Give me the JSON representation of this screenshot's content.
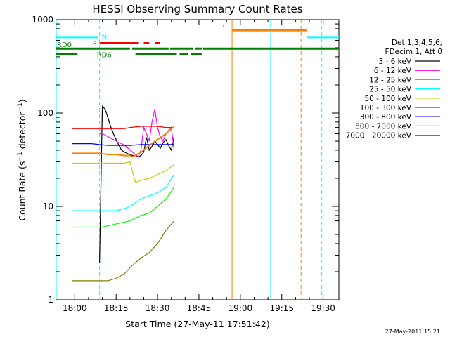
{
  "chart_data": {
    "type": "line",
    "title": "HESSI Observing Summary Count Rates",
    "xlabel": "Start Time (27-May-11 17:51:42)",
    "ylabel": "Count Rate (s^-1 detector^-1)",
    "ylabel_parts": {
      "main": "Count Rate (s",
      "sup1": "−1",
      "mid": " detector",
      "sup2": "−1",
      "end": ")"
    },
    "y_scale": "log",
    "xlim_minutes": [
      -6.7,
      95.7
    ],
    "ylim": [
      1,
      1000
    ],
    "x_ticks": [
      {
        "min": 0,
        "label": "18:00"
      },
      {
        "min": 15,
        "label": "18:15"
      },
      {
        "min": 30,
        "label": "18:30"
      },
      {
        "min": 45,
        "label": "18:45"
      },
      {
        "min": 60,
        "label": "19:00"
      },
      {
        "min": 75,
        "label": "19:15"
      },
      {
        "min": 90,
        "label": "19:30"
      }
    ],
    "y_ticks": [
      {
        "value": 1,
        "label": "1"
      },
      {
        "value": 10,
        "label": "10"
      },
      {
        "value": 100,
        "label": "100"
      },
      {
        "value": 1000,
        "label": "1000"
      }
    ],
    "legend_header": [
      "Det 1,3,4,5,6,",
      "FDecim 1, Att 0"
    ],
    "legend_placement": "right",
    "series": [
      {
        "name": "3 - 6 keV",
        "color": "#000000",
        "x": [
          9,
          10,
          11,
          12,
          13,
          14,
          15,
          16,
          17,
          18,
          19,
          20,
          21,
          22,
          23,
          24,
          25,
          26,
          27,
          28,
          29,
          30,
          31,
          32,
          33,
          34,
          35,
          36
        ],
        "y": [
          2.5,
          118,
          110,
          90,
          72,
          60,
          52,
          45,
          40,
          38,
          37,
          36,
          35,
          35,
          34,
          35,
          38,
          55,
          40,
          44,
          50,
          46,
          42,
          48,
          52,
          45,
          40,
          55
        ]
      },
      {
        "name": "6 - 12 keV",
        "color": "#ff00ff",
        "x": [
          9,
          10,
          11,
          12,
          13,
          14,
          15,
          16,
          17,
          18,
          19,
          20,
          21,
          22,
          23,
          24,
          25,
          26,
          27,
          28,
          29,
          30,
          31,
          32,
          33,
          34,
          35,
          36
        ],
        "y": [
          60,
          60,
          58,
          56,
          54,
          52,
          50,
          48,
          47,
          45,
          43,
          40,
          38,
          36,
          34,
          40,
          70,
          60,
          50,
          80,
          110,
          70,
          55,
          50,
          60,
          65,
          70,
          40
        ]
      },
      {
        "name": "12 - 25 keV",
        "color": "#00ff00",
        "x": [
          -1,
          0,
          3,
          6,
          9,
          10,
          15,
          20,
          22,
          24,
          27,
          30,
          33,
          36
        ],
        "y": [
          6,
          6,
          6,
          6,
          6,
          6,
          6.5,
          7,
          7.5,
          8,
          8.5,
          10,
          12,
          16
        ]
      },
      {
        "name": "25 - 50 keV",
        "color": "#00ffff",
        "x": [
          -1,
          3,
          6,
          9,
          12,
          15,
          18,
          20,
          22,
          24,
          27,
          30,
          33,
          36
        ],
        "y": [
          9,
          9,
          9,
          9,
          9,
          9,
          9.5,
          10,
          11,
          12,
          13,
          14,
          16,
          22
        ]
      },
      {
        "name": "50 - 100 keV",
        "color": "#cccc00",
        "x": [
          -1,
          3,
          6,
          9,
          12,
          15,
          18,
          20,
          22,
          24,
          27,
          30,
          33,
          36
        ],
        "y": [
          29,
          29,
          29,
          29,
          29,
          29,
          29,
          30,
          18,
          19,
          20,
          22,
          24,
          28
        ]
      },
      {
        "name": "100 - 300 keV",
        "color": "#ff0000",
        "x": [
          -1,
          3,
          6,
          9,
          12,
          15,
          18,
          20,
          24,
          27,
          30,
          33,
          36
        ],
        "y": [
          68,
          68,
          68,
          68,
          68,
          68,
          68,
          70,
          72,
          72,
          72,
          70,
          70
        ]
      },
      {
        "name": "300 - 800 keV",
        "color": "#0000ff",
        "x": [
          -1,
          3,
          6,
          9,
          12,
          15,
          18,
          20,
          24,
          27,
          30,
          33,
          36
        ],
        "y": [
          47,
          47,
          47,
          46,
          45,
          45,
          45,
          45,
          46,
          46,
          46,
          46,
          46
        ]
      },
      {
        "name": "800 - 7000 keV",
        "color": "#ff8000",
        "x": [
          -1,
          3,
          6,
          9,
          12,
          15,
          18,
          20,
          21,
          24,
          27,
          30,
          33,
          36
        ],
        "y": [
          37,
          37,
          37,
          37,
          36,
          36,
          35,
          35,
          34,
          38,
          45,
          52,
          60,
          72
        ]
      },
      {
        "name": "7000 - 20000 keV",
        "color": "#808000",
        "x": [
          -1,
          3,
          6,
          9,
          12,
          15,
          18,
          20,
          22,
          24,
          27,
          30,
          33,
          36
        ],
        "y": [
          1.6,
          1.6,
          1.6,
          1.6,
          1.6,
          1.7,
          1.9,
          2.2,
          2.5,
          2.8,
          3.2,
          4,
          5.5,
          7
        ]
      }
    ],
    "flag_bars": [
      {
        "label": "N",
        "color": "#00ffff",
        "y": 650,
        "segments": [
          [
            -6.7,
            8.5
          ],
          [
            84,
            95.7
          ]
        ]
      },
      {
        "label": "F",
        "color": "#ff0000",
        "y": 560,
        "segments": [
          [
            9,
            23
          ],
          [
            25,
            27
          ],
          [
            29,
            31
          ]
        ]
      },
      {
        "label": "S",
        "color": "#ff8000",
        "y": 770,
        "segments": [
          [
            57,
            84
          ]
        ]
      },
      {
        "label": "RD0",
        "color": "#008000",
        "y": 490,
        "segments": [
          [
            -6.7,
            20
          ],
          [
            20.8,
            34
          ],
          [
            34.5,
            43
          ],
          [
            43.5,
            46
          ],
          [
            46.5,
            95.7
          ]
        ]
      },
      {
        "label": "RD6",
        "color": "#008000",
        "y": 425,
        "segments": [
          [
            -6.7,
            1
          ],
          [
            22,
            37
          ],
          [
            38,
            41
          ],
          [
            42,
            46
          ]
        ]
      }
    ],
    "vlines": [
      {
        "x": -6.7,
        "color": "#00ffff",
        "dashed": false
      },
      {
        "x": 9,
        "color": "#00ffff",
        "dashed": true
      },
      {
        "x": 57,
        "color": "#ff8000",
        "dashed": false
      },
      {
        "x": 71,
        "color": "#00ffff",
        "dashed": false
      },
      {
        "x": 82,
        "color": "#ff8000",
        "dashed": true
      },
      {
        "x": 89.5,
        "color": "#00ffff",
        "dashed": true
      }
    ]
  },
  "stamp": "27-May-2011 15:21"
}
